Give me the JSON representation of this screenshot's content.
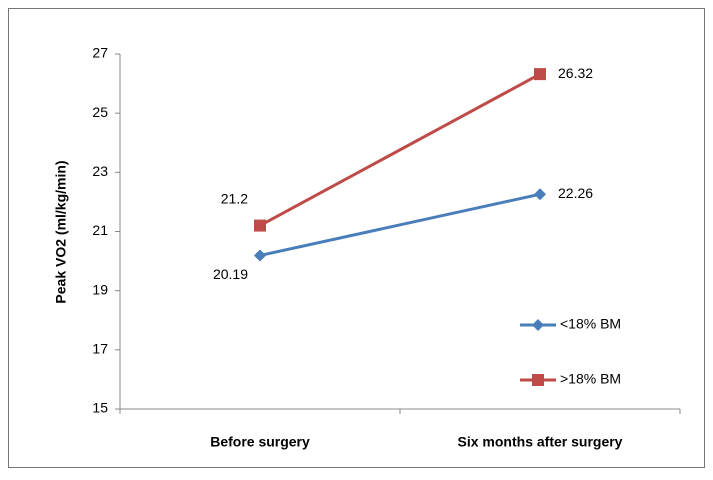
{
  "chart_data": {
    "type": "line",
    "y_label": "Peak VO2 (ml/kg/min)",
    "categories": [
      "Before surgery",
      "Six months after surgery"
    ],
    "series": [
      {
        "name": "<18% BM",
        "color": "#4a7ebb",
        "marker": "diamond",
        "values": [
          20.19,
          22.26
        ]
      },
      {
        "name": ">18% BM",
        "color": "#be4b48",
        "marker": "square",
        "values": [
          21.2,
          26.32
        ]
      }
    ],
    "ylim": [
      15,
      27
    ],
    "yticks": [
      15,
      17,
      19,
      21,
      23,
      25,
      27
    ],
    "grid": false,
    "legend": "right"
  }
}
